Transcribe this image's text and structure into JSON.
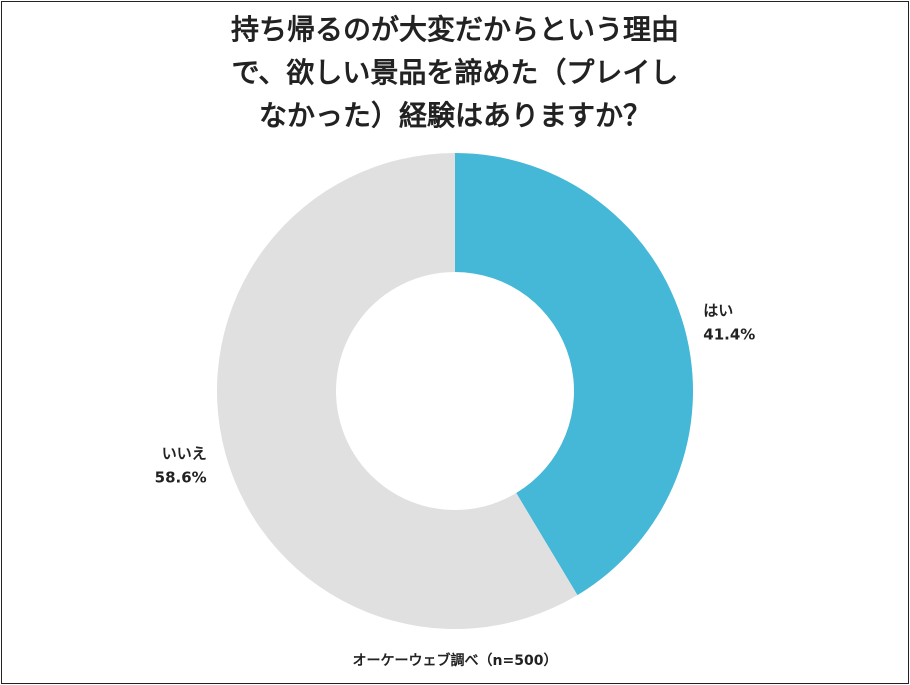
{
  "chart_data": {
    "type": "pie",
    "title_lines": [
      "持ち帰るのが大変だからという理由",
      "で、欲しい景品を諦めた（プレイし",
      "なかった）経験はありますか？"
    ],
    "categories": [
      "はい",
      "いいえ"
    ],
    "values": [
      41.4,
      58.6
    ],
    "value_labels": [
      "41.4%",
      "58.6%"
    ],
    "colors": [
      "#45b7d7",
      "#e0e0e0"
    ],
    "donut": true,
    "source": "オーケーウェブ調べ（n=500）"
  }
}
